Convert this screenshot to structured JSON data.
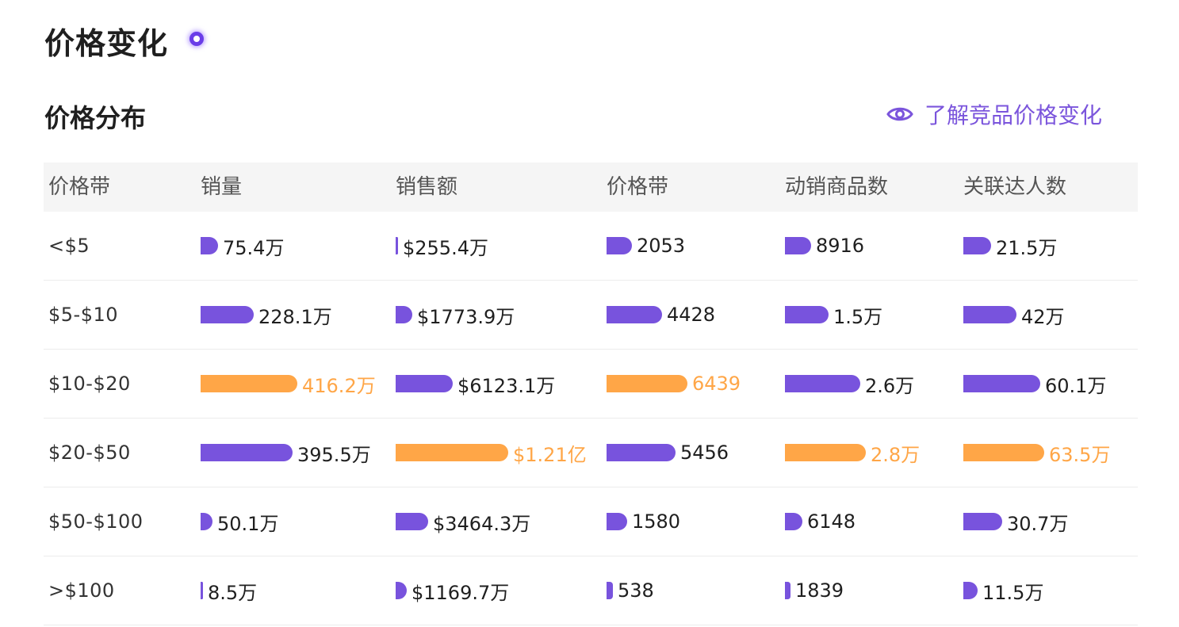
{
  "header": {
    "title": "价格变化",
    "section_title": "价格分布",
    "compare_link": "了解竞品价格变化"
  },
  "colors": {
    "bar": "#7853dd",
    "highlight": "#ffa647",
    "accent": "#7b55dc"
  },
  "table": {
    "columns": [
      "价格带",
      "销量",
      "销售额",
      "价格带",
      "动销商品数",
      "关联达人数"
    ],
    "rows": [
      {
        "band": "<$5",
        "cells": [
          {
            "text": "75.4万",
            "ratio": 0.18,
            "highlight": false
          },
          {
            "text": "$255.4万",
            "ratio": 0.02,
            "highlight": false
          },
          {
            "text": "2053",
            "ratio": 0.31,
            "highlight": false
          },
          {
            "text": "8916",
            "ratio": 0.32,
            "highlight": false
          },
          {
            "text": "21.5万",
            "ratio": 0.34,
            "highlight": false
          }
        ]
      },
      {
        "band": "$5-$10",
        "cells": [
          {
            "text": "228.1万",
            "ratio": 0.55,
            "highlight": false
          },
          {
            "text": "$1773.9万",
            "ratio": 0.15,
            "highlight": false
          },
          {
            "text": "4428",
            "ratio": 0.69,
            "highlight": false
          },
          {
            "text": "1.5万",
            "ratio": 0.54,
            "highlight": false
          },
          {
            "text": "42万",
            "ratio": 0.66,
            "highlight": false
          }
        ]
      },
      {
        "band": "$10-$20",
        "cells": [
          {
            "text": "416.2万",
            "ratio": 1.0,
            "highlight": true
          },
          {
            "text": "$6123.1万",
            "ratio": 0.51,
            "highlight": false
          },
          {
            "text": "6439",
            "ratio": 1.0,
            "highlight": true
          },
          {
            "text": "2.6万",
            "ratio": 0.93,
            "highlight": false
          },
          {
            "text": "60.1万",
            "ratio": 0.95,
            "highlight": false
          }
        ]
      },
      {
        "band": "$20-$50",
        "cells": [
          {
            "text": "395.5万",
            "ratio": 0.95,
            "highlight": false
          },
          {
            "text": "$1.21亿",
            "ratio": 1.0,
            "highlight": true
          },
          {
            "text": "5456",
            "ratio": 0.85,
            "highlight": false
          },
          {
            "text": "2.8万",
            "ratio": 1.0,
            "highlight": true
          },
          {
            "text": "63.5万",
            "ratio": 1.0,
            "highlight": true
          }
        ]
      },
      {
        "band": "$50-$100",
        "cells": [
          {
            "text": "50.1万",
            "ratio": 0.12,
            "highlight": false
          },
          {
            "text": "$3464.3万",
            "ratio": 0.29,
            "highlight": false
          },
          {
            "text": "1580",
            "ratio": 0.25,
            "highlight": false
          },
          {
            "text": "6148",
            "ratio": 0.22,
            "highlight": false
          },
          {
            "text": "30.7万",
            "ratio": 0.48,
            "highlight": false
          }
        ]
      },
      {
        "band": ">$100",
        "cells": [
          {
            "text": "8.5万",
            "ratio": 0.02,
            "highlight": false
          },
          {
            "text": "$1169.7万",
            "ratio": 0.1,
            "highlight": false
          },
          {
            "text": "538",
            "ratio": 0.08,
            "highlight": false
          },
          {
            "text": "1839",
            "ratio": 0.07,
            "highlight": false
          },
          {
            "text": "11.5万",
            "ratio": 0.18,
            "highlight": false
          }
        ]
      }
    ]
  }
}
